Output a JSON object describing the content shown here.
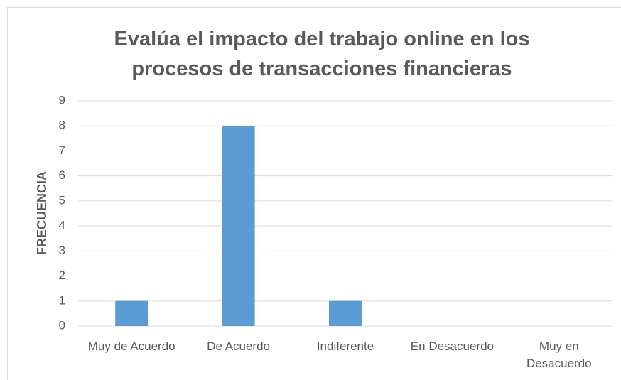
{
  "chart_data": {
    "type": "bar",
    "title": "Evalúa el impacto del trabajo online en los procesos de transacciones financieras",
    "y_label": "FRECUENCIA",
    "categories": [
      "Muy de Acuerdo",
      "De Acuerdo",
      "Indiferente",
      "En Desacuerdo",
      "Muy en Desacuerdo"
    ],
    "values": [
      1,
      8,
      1,
      0,
      0
    ],
    "color": "#5b9bd5",
    "ylim": [
      0,
      9
    ],
    "yticks": [
      0,
      1,
      2,
      3,
      4,
      5,
      6,
      7,
      8,
      9
    ],
    "grid": true
  }
}
